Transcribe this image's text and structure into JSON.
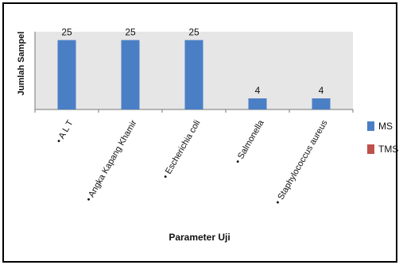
{
  "chart_data": {
    "type": "bar",
    "categories": [
      "A L T",
      "Angka Kapang Khamir",
      "Escherichia coli",
      "Salmonella",
      "Staphylococcus aureus"
    ],
    "category_labels": [
      "• A L T",
      "• Angka Kapang Khamir",
      "• Escherichia coli",
      "• Salmonella",
      "• Staphylococcus aureus"
    ],
    "series": [
      {
        "name": "MS",
        "values": [
          25,
          25,
          25,
          4,
          4
        ],
        "color": "#4a7fc5"
      },
      {
        "name": "TMS",
        "values": [
          0,
          0,
          0,
          0,
          0
        ],
        "color": "#c0504d"
      }
    ],
    "data_labels": [
      "25",
      "25",
      "25",
      "4",
      "4"
    ],
    "title": "",
    "xlabel": "Parameter Uji",
    "ylabel": "Jumlah Sampel",
    "ylim": [
      0,
      28
    ],
    "grid": false,
    "legend_position": "right",
    "plot_background": "#e6e6e6"
  }
}
